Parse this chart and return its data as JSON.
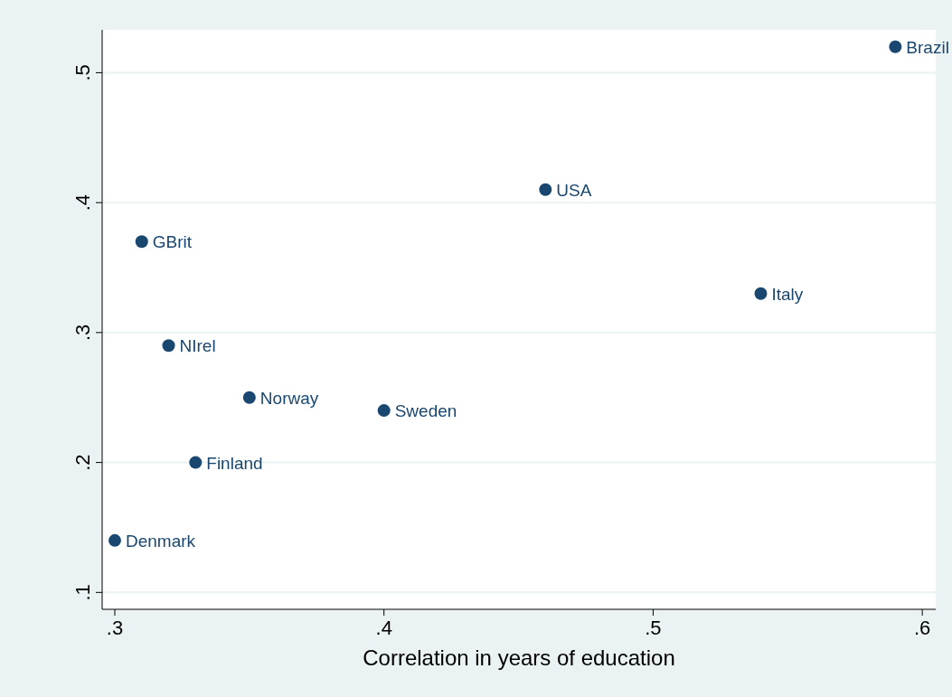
{
  "chart_data": {
    "type": "scatter",
    "xlabel": "Correlation in years of education",
    "x": [
      0.3,
      0.31,
      0.32,
      0.33,
      0.35,
      0.4,
      0.46,
      0.54,
      0.59
    ],
    "series": [
      {
        "color": "#1a476f",
        "values": [
          0.14,
          0.37,
          0.29,
          0.2,
          0.25,
          0.24,
          0.41,
          0.33,
          0.52
        ]
      }
    ],
    "annotations": [
      {
        "text": "Denmark",
        "x": 0.3,
        "y": 0.14
      },
      {
        "text": "GBrit",
        "x": 0.31,
        "y": 0.37
      },
      {
        "text": "NIrel",
        "x": 0.32,
        "y": 0.29
      },
      {
        "text": "Finland",
        "x": 0.33,
        "y": 0.2
      },
      {
        "text": "Norway",
        "x": 0.35,
        "y": 0.25
      },
      {
        "text": "Sweden",
        "x": 0.4,
        "y": 0.24
      },
      {
        "text": "USA",
        "x": 0.46,
        "y": 0.41
      },
      {
        "text": "Italy",
        "x": 0.54,
        "y": 0.33
      },
      {
        "text": "Brazil",
        "x": 0.59,
        "y": 0.52
      }
    ],
    "xlim": [
      0.2953,
      0.605
    ],
    "ylim": [
      0.087,
      0.533
    ],
    "xticks": [
      {
        "value": 0.3,
        "label": ".3"
      },
      {
        "value": 0.4,
        "label": ".4"
      },
      {
        "value": 0.5,
        "label": ".5"
      },
      {
        "value": 0.6,
        "label": ".6"
      }
    ],
    "yticks": [
      {
        "value": 0.1,
        "label": ".1"
      },
      {
        "value": 0.2,
        "label": ".2"
      },
      {
        "value": 0.3,
        "label": ".3"
      },
      {
        "value": 0.4,
        "label": ".4"
      },
      {
        "value": 0.5,
        "label": ".5"
      }
    ],
    "grid": "y",
    "marker": "circle"
  }
}
